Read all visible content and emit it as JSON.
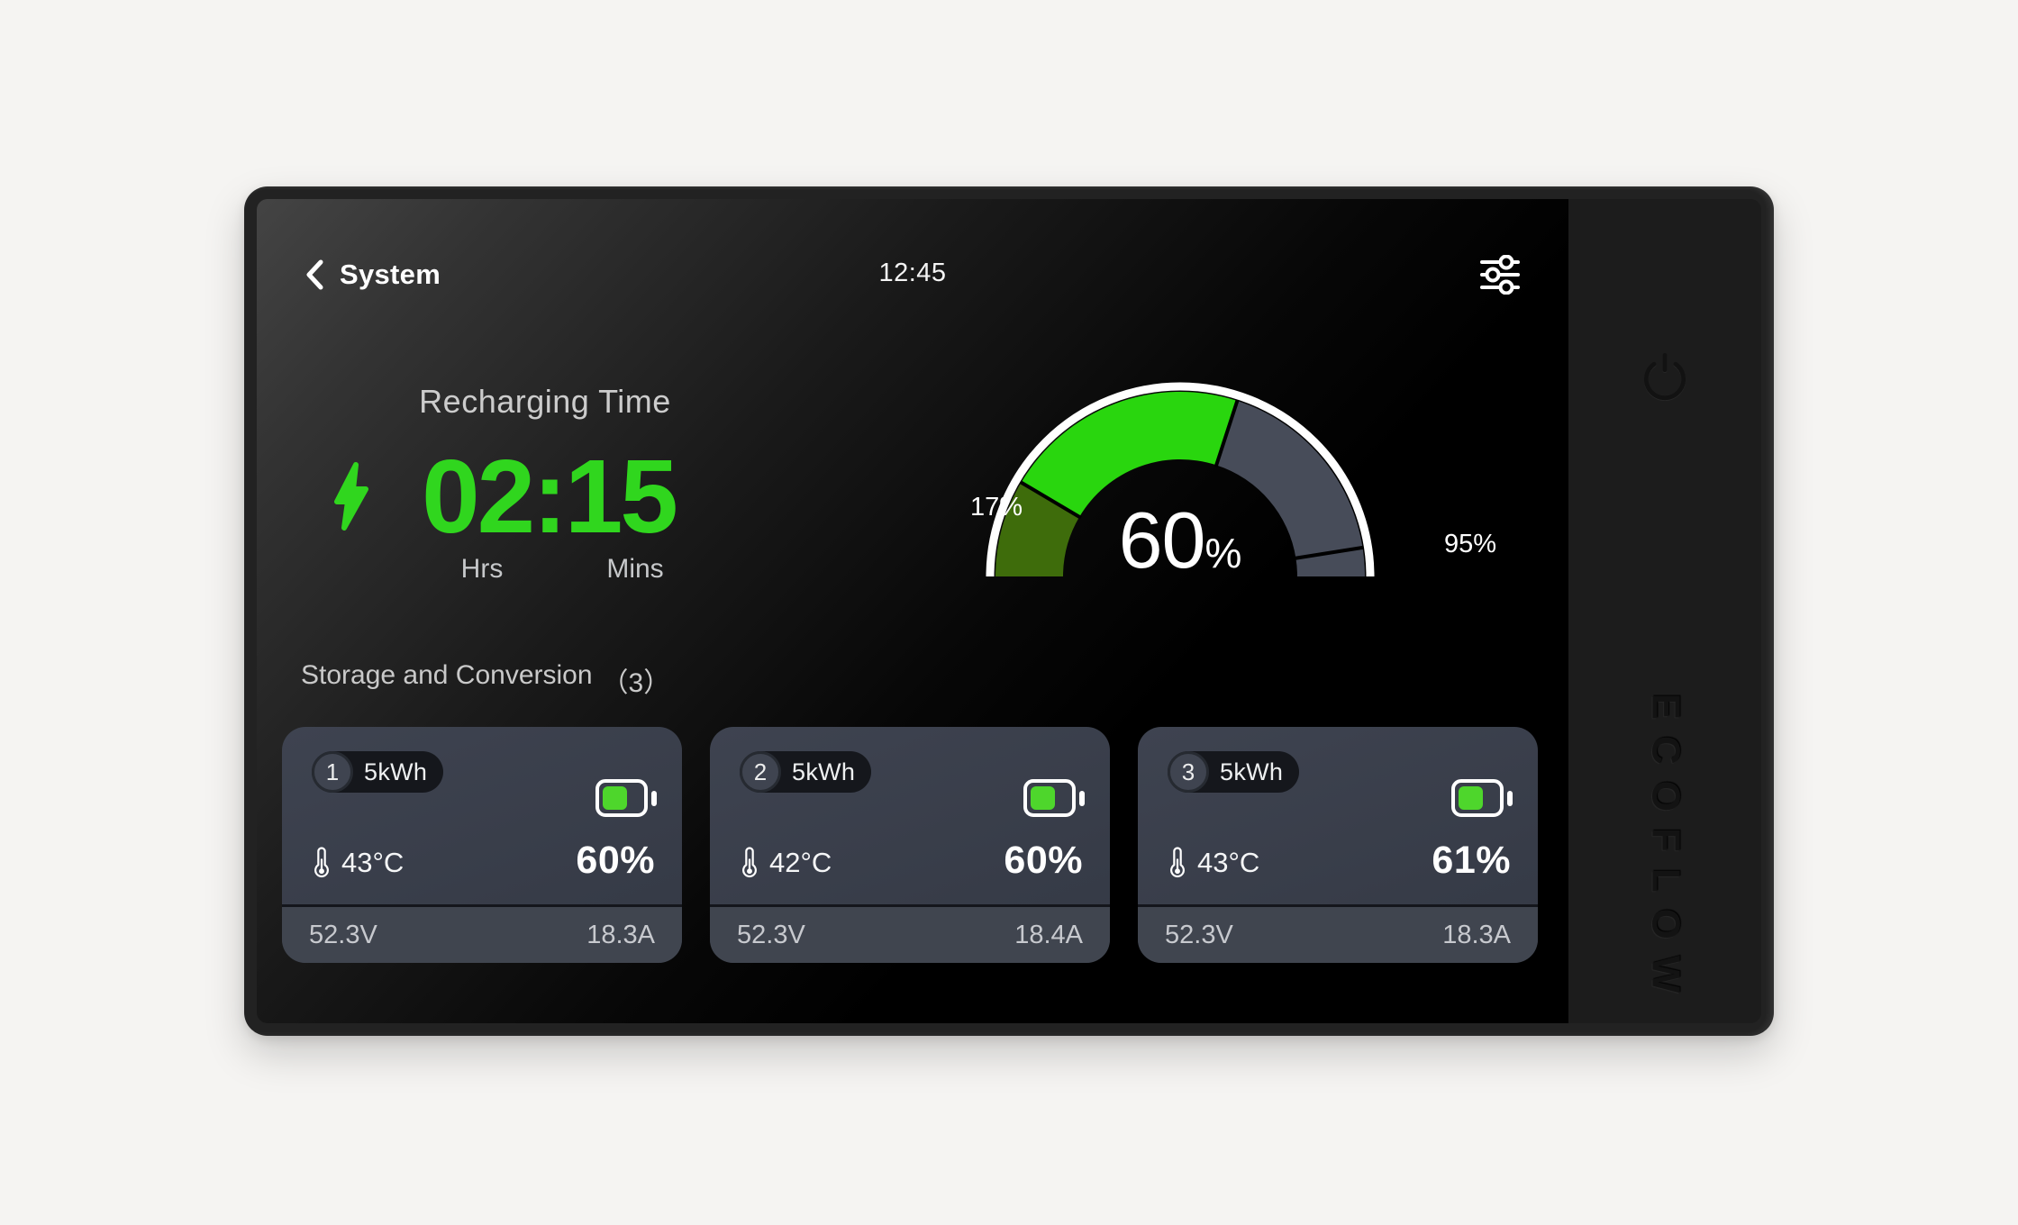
{
  "statusbar": {
    "back_label": "System",
    "time": "12:45"
  },
  "recharge": {
    "title": "Recharging Time",
    "time": "02:15",
    "hours_label": "Hrs",
    "minutes_label": "Mins"
  },
  "gauge": {
    "value_label": "60",
    "unit": "%",
    "min_label": "17%",
    "max_label": "95%",
    "segments": [
      {
        "from": 0,
        "to": 17,
        "color": "#3e6c0b"
      },
      {
        "from": 17,
        "to": 60,
        "color": "#29d60e"
      },
      {
        "from": 60,
        "to": 95,
        "color": "#474c59"
      },
      {
        "from": 95,
        "to": 100,
        "color": "#474c59"
      }
    ],
    "dividers": [
      17,
      60,
      95
    ],
    "ring_color": "#ffffff"
  },
  "storage": {
    "title": "Storage and Conversion",
    "count": "（3）",
    "cards": [
      {
        "index": "1",
        "capacity": "5kWh",
        "temp": "43°C",
        "soc": "60%",
        "voltage": "52.3V",
        "current": "18.3A"
      },
      {
        "index": "2",
        "capacity": "5kWh",
        "temp": "42°C",
        "soc": "60%",
        "voltage": "52.3V",
        "current": "18.4A"
      },
      {
        "index": "3",
        "capacity": "5kWh",
        "temp": "43°C",
        "soc": "61%",
        "voltage": "52.3V",
        "current": "18.3A"
      }
    ]
  },
  "brand": {
    "logo": "ECOFLOW"
  },
  "colors": {
    "accent_green": "#30d61e",
    "gauge_bright_green": "#29d60e",
    "gauge_dark_green": "#3e6c0b",
    "gauge_slate": "#474c59",
    "battery_green": "#4ed62c",
    "card_bg": "#3a3f4b",
    "card_footer_bg": "#40454f",
    "badge_bg": "#15171c",
    "muted_text": "#c9cbce"
  }
}
